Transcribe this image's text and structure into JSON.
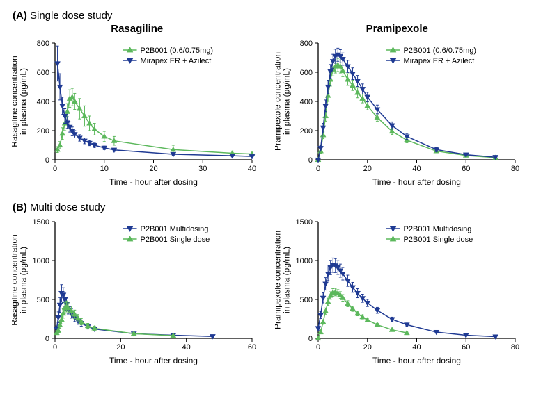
{
  "sections": {
    "A": {
      "tag": "(A)",
      "label": "Single dose study"
    },
    "B": {
      "tag": "(B)",
      "label": "Multi dose study"
    }
  },
  "titles": {
    "rasagiline": "Rasagiline",
    "pramipexole": "Pramipexole"
  },
  "colors": {
    "green": "#5cb85c",
    "blue": "#1f3a93",
    "axis": "#000000",
    "bg": "#ffffff"
  },
  "axis_common": {
    "xlabel": "Time - hour after dosing",
    "label_fontsize": 12,
    "tick_fontsize": 11,
    "legend_fontsize": 11
  },
  "chartA1": {
    "type": "line",
    "ylabel": "Rasagiline concentration\nin plasma (pg/mL)",
    "xlim": [
      0,
      40
    ],
    "xtick_step": 10,
    "ylim": [
      0,
      800
    ],
    "ytick_step": 200,
    "legend": [
      {
        "label": "P2B001 (0.6/0.75mg)",
        "color": "#5cb85c",
        "marker": "triangle-up"
      },
      {
        "label": "Mirapex ER + Azilect",
        "color": "#1f3a93",
        "marker": "triangle-down"
      }
    ],
    "series": [
      {
        "name": "P2B001",
        "color": "#5cb85c",
        "marker": "triangle-up",
        "line_width": 1.5,
        "marker_size": 6,
        "x": [
          0.5,
          1,
          1.5,
          2,
          2.5,
          3,
          3.5,
          4,
          5,
          6,
          7,
          8,
          10,
          12,
          24,
          36,
          40
        ],
        "y": [
          70,
          100,
          180,
          250,
          330,
          420,
          430,
          400,
          350,
          300,
          250,
          210,
          160,
          130,
          70,
          45,
          40
        ],
        "err": [
          20,
          25,
          40,
          50,
          55,
          60,
          60,
          55,
          70,
          70,
          50,
          40,
          35,
          30,
          30,
          15,
          10
        ]
      },
      {
        "name": "Mirapex+Azilect",
        "color": "#1f3a93",
        "marker": "triangle-down",
        "line_width": 1.5,
        "marker_size": 6,
        "x": [
          0.5,
          1,
          1.5,
          2,
          2.5,
          3,
          3.5,
          4,
          5,
          6,
          7,
          8,
          10,
          12,
          24,
          36,
          40
        ],
        "y": [
          660,
          500,
          370,
          300,
          255,
          225,
          195,
          175,
          150,
          130,
          115,
          100,
          82,
          68,
          38,
          28,
          23
        ],
        "err": [
          120,
          90,
          60,
          50,
          40,
          35,
          30,
          25,
          22,
          20,
          18,
          15,
          12,
          10,
          8,
          6,
          5
        ]
      }
    ]
  },
  "chartA2": {
    "type": "line",
    "ylabel": "Pramipexole concentration\nin plasma (pg/mL)",
    "xlim": [
      0,
      80
    ],
    "xtick_step": 20,
    "ylim": [
      0,
      800
    ],
    "ytick_step": 200,
    "legend": [
      {
        "label": "P2B001 (0.6/0.75mg)",
        "color": "#5cb85c",
        "marker": "triangle-up"
      },
      {
        "label": "Mirapex ER + Azilect",
        "color": "#1f3a93",
        "marker": "triangle-down"
      }
    ],
    "series": [
      {
        "name": "P2B001",
        "color": "#5cb85c",
        "marker": "triangle-up",
        "line_width": 1.5,
        "marker_size": 6,
        "x": [
          0,
          1,
          2,
          3,
          4,
          5,
          6,
          7,
          8,
          9,
          10,
          12,
          14,
          16,
          18,
          20,
          24,
          30,
          36,
          48,
          60,
          72
        ],
        "y": [
          0,
          60,
          170,
          300,
          440,
          550,
          620,
          640,
          650,
          640,
          610,
          550,
          510,
          460,
          420,
          370,
          290,
          195,
          135,
          60,
          30,
          15
        ],
        "err": [
          5,
          15,
          25,
          35,
          40,
          45,
          45,
          45,
          45,
          45,
          40,
          40,
          35,
          35,
          30,
          28,
          25,
          22,
          18,
          12,
          8,
          5
        ]
      },
      {
        "name": "Mirapex+Azilect",
        "color": "#1f3a93",
        "marker": "triangle-down",
        "line_width": 1.5,
        "marker_size": 6,
        "x": [
          0,
          1,
          2,
          3,
          4,
          5,
          6,
          7,
          8,
          9,
          10,
          12,
          14,
          16,
          18,
          20,
          24,
          30,
          36,
          48,
          60,
          72
        ],
        "y": [
          0,
          80,
          220,
          370,
          500,
          605,
          675,
          710,
          720,
          710,
          690,
          640,
          590,
          540,
          485,
          430,
          345,
          235,
          160,
          70,
          35,
          18
        ],
        "err": [
          5,
          20,
          30,
          40,
          45,
          48,
          48,
          48,
          45,
          45,
          42,
          42,
          40,
          38,
          35,
          33,
          30,
          25,
          20,
          14,
          9,
          5
        ]
      }
    ]
  },
  "chartB1": {
    "type": "line",
    "ylabel": "Rasagiline concentration\nin plasma (pg/mL)",
    "xlim": [
      0,
      60
    ],
    "xtick_step": 20,
    "ylim": [
      0,
      1500
    ],
    "ytick_step": 500,
    "legend": [
      {
        "label": "P2B001 Multidosing",
        "color": "#1f3a93",
        "marker": "triangle-down"
      },
      {
        "label": "P2B001 Single dose",
        "color": "#5cb85c",
        "marker": "triangle-up"
      }
    ],
    "series": [
      {
        "name": "Multi",
        "color": "#1f3a93",
        "marker": "triangle-down",
        "line_width": 1.5,
        "marker_size": 6,
        "x": [
          0.5,
          1,
          1.5,
          2,
          2.5,
          3,
          3.5,
          4,
          5,
          6,
          7,
          8,
          10,
          12,
          24,
          36,
          48
        ],
        "y": [
          120,
          270,
          430,
          580,
          555,
          500,
          440,
          385,
          320,
          265,
          225,
          195,
          150,
          120,
          60,
          40,
          25
        ],
        "err": [
          40,
          70,
          95,
          110,
          95,
          90,
          80,
          72,
          60,
          50,
          45,
          38,
          30,
          25,
          15,
          10,
          7
        ]
      },
      {
        "name": "Single",
        "color": "#5cb85c",
        "marker": "triangle-up",
        "line_width": 1.5,
        "marker_size": 6,
        "x": [
          0.5,
          1,
          1.5,
          2,
          2.5,
          3,
          3.5,
          4,
          5,
          6,
          7,
          8,
          10,
          12,
          24,
          36
        ],
        "y": [
          70,
          100,
          170,
          240,
          320,
          390,
          410,
          390,
          355,
          308,
          258,
          215,
          160,
          130,
          60,
          35
        ],
        "err": [
          20,
          25,
          40,
          55,
          60,
          68,
          70,
          65,
          60,
          55,
          48,
          40,
          32,
          27,
          15,
          9
        ]
      }
    ]
  },
  "chartB2": {
    "type": "line",
    "ylabel": "Pramipexole concentration\nin plasma (pg/mL)",
    "xlim": [
      0,
      80
    ],
    "xtick_step": 20,
    "ylim": [
      0,
      1500
    ],
    "ytick_step": 500,
    "legend": [
      {
        "label": "P2B001 Multidosing",
        "color": "#1f3a93",
        "marker": "triangle-down"
      },
      {
        "label": "P2B001 Single dose",
        "color": "#5cb85c",
        "marker": "triangle-up"
      }
    ],
    "series": [
      {
        "name": "Multi",
        "color": "#1f3a93",
        "marker": "triangle-down",
        "line_width": 1.5,
        "marker_size": 6,
        "x": [
          0,
          1,
          2,
          3,
          4,
          5,
          6,
          7,
          8,
          9,
          10,
          12,
          14,
          16,
          18,
          20,
          24,
          30,
          36,
          48,
          60,
          72
        ],
        "y": [
          130,
          300,
          520,
          700,
          830,
          910,
          940,
          935,
          910,
          870,
          830,
          740,
          655,
          580,
          515,
          455,
          360,
          245,
          175,
          80,
          40,
          22
        ],
        "err": [
          25,
          45,
          65,
          80,
          88,
          92,
          92,
          90,
          88,
          84,
          80,
          72,
          64,
          58,
          52,
          46,
          38,
          28,
          22,
          12,
          8,
          5
        ]
      },
      {
        "name": "Single",
        "color": "#5cb85c",
        "marker": "triangle-up",
        "line_width": 1.5,
        "marker_size": 6,
        "x": [
          0,
          1,
          2,
          3,
          4,
          5,
          6,
          7,
          8,
          9,
          10,
          12,
          14,
          16,
          18,
          20,
          24,
          30,
          36
        ],
        "y": [
          0,
          80,
          210,
          350,
          470,
          550,
          590,
          595,
          580,
          555,
          520,
          445,
          380,
          320,
          275,
          235,
          175,
          110,
          70
        ],
        "err": [
          5,
          18,
          30,
          40,
          45,
          48,
          48,
          48,
          46,
          44,
          42,
          38,
          33,
          30,
          26,
          23,
          18,
          14,
          10
        ]
      }
    ]
  }
}
